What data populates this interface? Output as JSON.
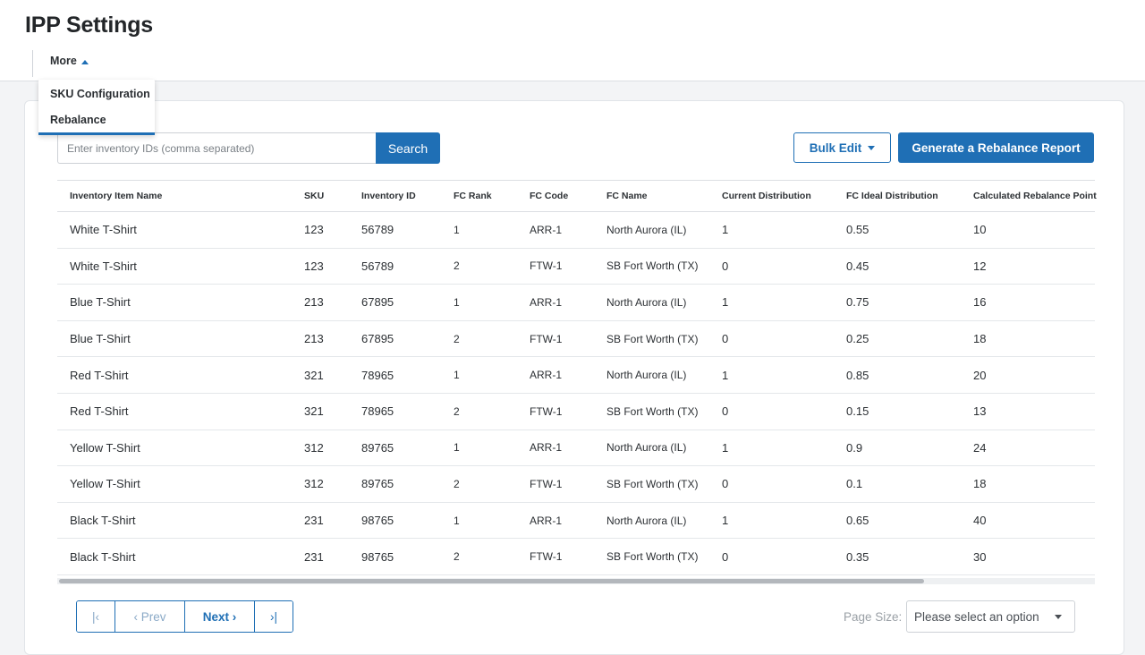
{
  "header": {
    "title": "IPP Settings",
    "more_label": "More"
  },
  "dropdown": {
    "items": [
      {
        "label": "SKU Configuration"
      },
      {
        "label": "Rebalance"
      }
    ]
  },
  "toolbar": {
    "search_placeholder": "Enter inventory IDs (comma separated)",
    "search_label": "Search",
    "bulk_edit_label": "Bulk Edit",
    "generate_label": "Generate a Rebalance Report"
  },
  "table": {
    "columns": [
      "Inventory Item Name",
      "SKU",
      "Inventory ID",
      "FC Rank",
      "FC Code",
      "FC Name",
      "Current Distribution",
      "FC Ideal Distribution",
      "Calculated Rebalance Point"
    ],
    "rows": [
      [
        "White T-Shirt",
        "123",
        "56789",
        "1",
        "ARR-1",
        "North Aurora (IL)",
        "1",
        "0.55",
        "10"
      ],
      [
        "White T-Shirt",
        "123",
        "56789",
        "2",
        "FTW-1",
        "SB Fort Worth (TX)",
        "0",
        "0.45",
        "12"
      ],
      [
        "Blue T-Shirt",
        "213",
        "67895",
        "1",
        "ARR-1",
        "North Aurora (IL)",
        "1",
        "0.75",
        "16"
      ],
      [
        "Blue T-Shirt",
        "213",
        "67895",
        "2",
        "FTW-1",
        "SB Fort Worth (TX)",
        "0",
        "0.25",
        "18"
      ],
      [
        "Red T-Shirt",
        "321",
        "78965",
        "1",
        "ARR-1",
        "North Aurora (IL)",
        "1",
        "0.85",
        "20"
      ],
      [
        "Red T-Shirt",
        "321",
        "78965",
        "2",
        "FTW-1",
        "SB Fort Worth (TX)",
        "0",
        "0.15",
        "13"
      ],
      [
        "Yellow T-Shirt",
        "312",
        "89765",
        "1",
        "ARR-1",
        "North Aurora (IL)",
        "1",
        "0.9",
        "24"
      ],
      [
        "Yellow T-Shirt",
        "312",
        "89765",
        "2",
        "FTW-1",
        "SB Fort Worth (TX)",
        "0",
        "0.1",
        "18"
      ],
      [
        "Black T-Shirt",
        "231",
        "98765",
        "1",
        "ARR-1",
        "North Aurora (IL)",
        "1",
        "0.65",
        "40"
      ],
      [
        "Black T-Shirt",
        "231",
        "98765",
        "2",
        "FTW-1",
        "SB Fort Worth (TX)",
        "0",
        "0.35",
        "30"
      ]
    ]
  },
  "pagination": {
    "first_label": "|‹",
    "prev_label": "‹ Prev",
    "next_label": "Next ›",
    "last_label": "›|",
    "page_size_label": "Page Size:",
    "page_size_placeholder": "Please select an option"
  },
  "colors": {
    "accent": "#1f6fb5"
  }
}
